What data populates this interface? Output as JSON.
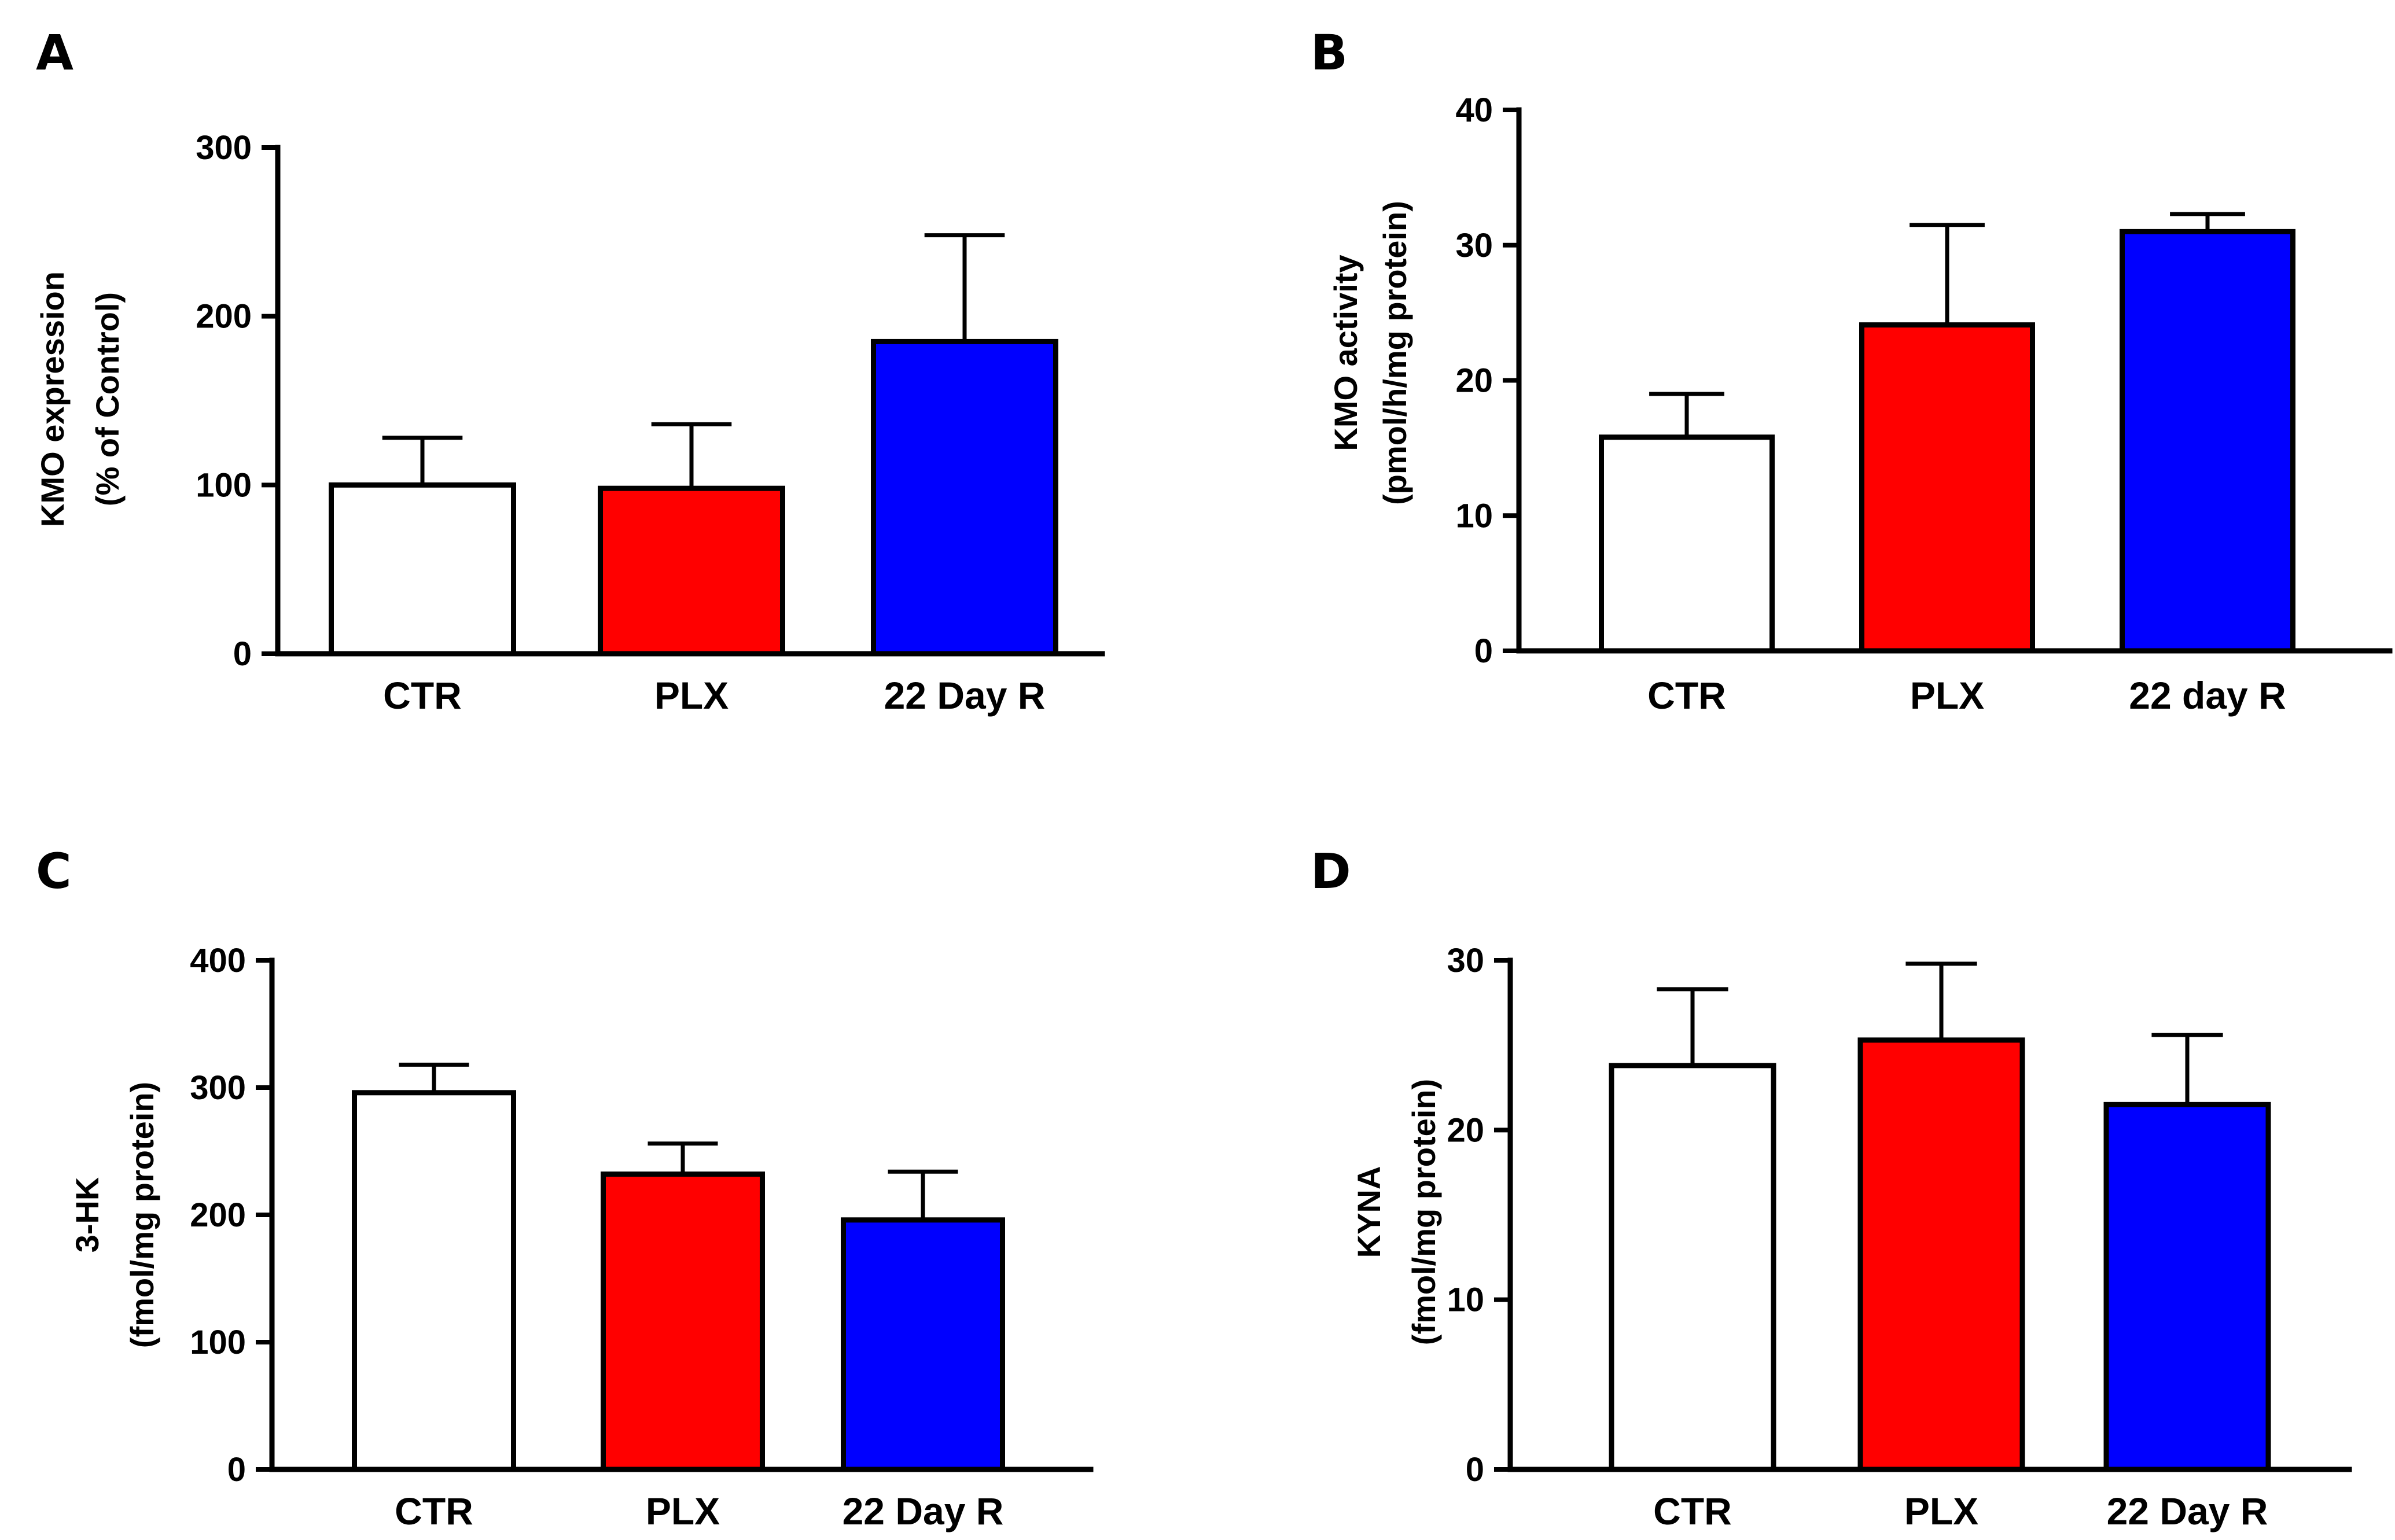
{
  "chart_data": [
    {
      "panel": "A",
      "type": "bar",
      "categories": [
        "CTR",
        "PLX",
        "22 Day R"
      ],
      "values": [
        100,
        98,
        185
      ],
      "errors": [
        28,
        38,
        63
      ],
      "colors": [
        "#ffffff",
        "#ff0000",
        "#0000ff"
      ],
      "ylabel": [
        "KMO expression",
        "(% of Control)"
      ],
      "ylim": [
        0,
        300
      ],
      "yticks": [
        "0",
        "100",
        "200",
        "300"
      ],
      "title": "",
      "xlabel": "",
      "grid": false
    },
    {
      "panel": "B",
      "type": "bar",
      "categories": [
        "CTR",
        "PLX",
        "22 day R"
      ],
      "values": [
        15.8,
        24.1,
        31
      ],
      "errors": [
        3.2,
        7.4,
        1.3
      ],
      "colors": [
        "#ffffff",
        "#ff0000",
        "#0000ff"
      ],
      "ylabel": [
        "KMO activity",
        "(pmol/h/mg protein)"
      ],
      "ylim": [
        0,
        40
      ],
      "yticks": [
        "0",
        "10",
        "20",
        "30",
        "40"
      ],
      "title": "",
      "xlabel": "",
      "grid": false
    },
    {
      "panel": "C",
      "type": "bar",
      "categories": [
        "CTR",
        "PLX",
        "22 Day R"
      ],
      "values": [
        296,
        232,
        196
      ],
      "errors": [
        22,
        24,
        38
      ],
      "colors": [
        "#ffffff",
        "#ff0000",
        "#0000ff"
      ],
      "ylabel": [
        "3-HK",
        "(fmol/mg protein)"
      ],
      "ylim": [
        0,
        400
      ],
      "yticks": [
        "0",
        "100",
        "200",
        "300",
        "400"
      ],
      "title": "",
      "xlabel": "",
      "grid": false
    },
    {
      "panel": "D",
      "type": "bar",
      "categories": [
        "CTR",
        "PLX",
        "22 Day R"
      ],
      "values": [
        23.8,
        25.3,
        21.5
      ],
      "errors": [
        4.5,
        4.5,
        4.1
      ],
      "colors": [
        "#ffffff",
        "#ff0000",
        "#0000ff"
      ],
      "ylabel": [
        "KYNA",
        "(fmol/mg protein)"
      ],
      "ylim": [
        0,
        30
      ],
      "yticks": [
        "0",
        "10",
        "20",
        "30"
      ],
      "title": "",
      "xlabel": "",
      "grid": false
    }
  ]
}
